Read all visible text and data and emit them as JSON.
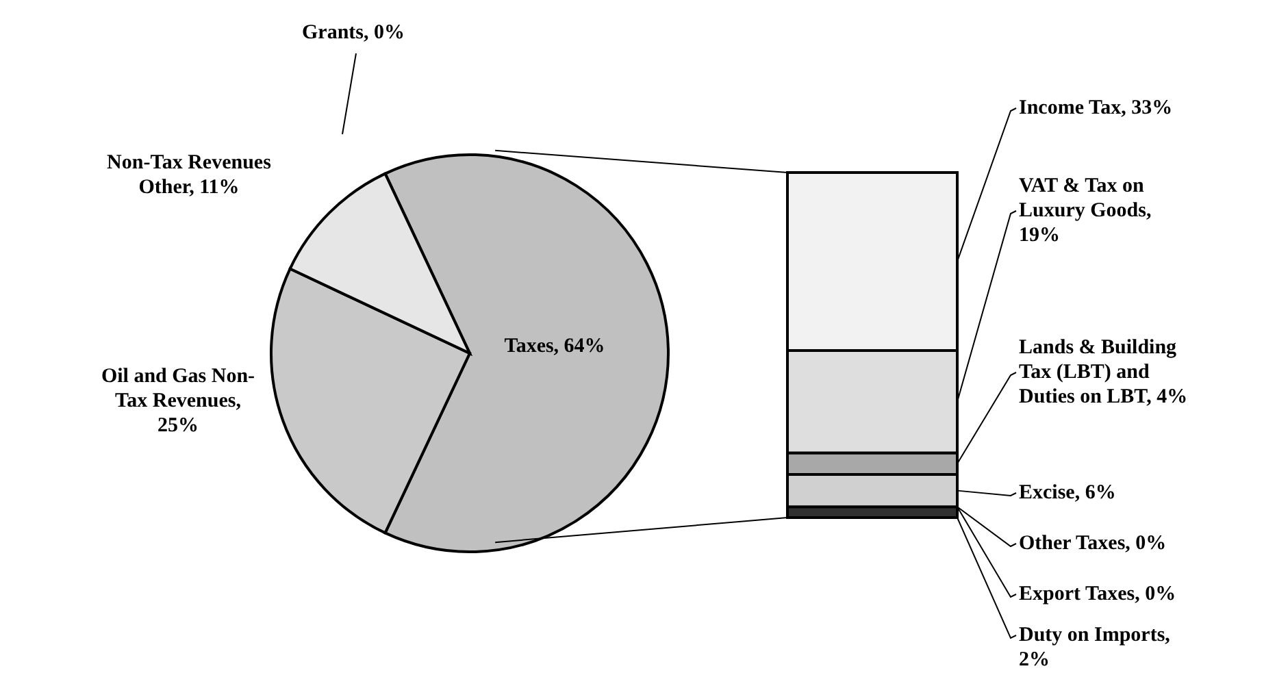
{
  "chart_data": [
    {
      "type": "pie",
      "categories": [
        "Taxes, 64%",
        "Oil and Gas Non-Tax Revenues, 25%",
        "Non-Tax Revenues Other, 11%",
        "Grants, 0%"
      ],
      "values": [
        64,
        25,
        11,
        0
      ],
      "colors": [
        "#c0c0c0",
        "#c9c9c9",
        "#e6e6e6",
        "#ffffff"
      ]
    },
    {
      "type": "bar",
      "stacked": true,
      "categories": [
        null
      ],
      "tick_labels": false,
      "series": [
        {
          "name": "Duty on Imports,",
          "color": "#303030",
          "values": [
            2
          ],
          "value_labels": [
            "2%"
          ]
        },
        {
          "name": "Export Taxes,",
          "values": [
            0
          ],
          "value_labels": [
            "0%"
          ]
        },
        {
          "name": "Other Taxes,",
          "values": [
            0
          ],
          "value_labels": [
            "0%"
          ]
        },
        {
          "name": "Excise,",
          "color": "#d0d0d0",
          "values": [
            6
          ],
          "value_labels": [
            "6%"
          ]
        },
        {
          "name": "Lands & Building Tax (LBT) and Duties on LBT,",
          "color": "#a8a8a8",
          "values": [
            4
          ],
          "value_labels": [
            "4%"
          ]
        },
        {
          "name": "VAT & Tax on Luxury Goods,",
          "color": "#dedede",
          "values": [
            19
          ],
          "value_labels": [
            "19%"
          ]
        },
        {
          "name": "Income Tax,",
          "color": "#f2f2f2",
          "values": [
            33
          ],
          "value_labels": [
            "33%"
          ]
        }
      ]
    }
  ]
}
